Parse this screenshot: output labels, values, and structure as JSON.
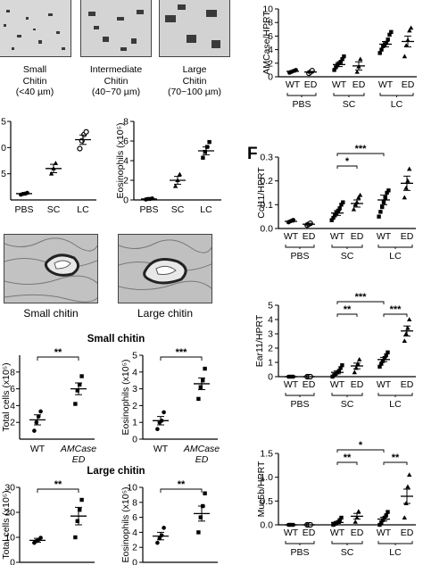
{
  "panel_letters": {
    "f": "F"
  },
  "chitin_sizes": [
    {
      "name": "Small",
      "word": "Chitin",
      "range": "(<40 µm)"
    },
    {
      "name": "Intermediate",
      "word": "Chitin",
      "range": "(40~70 µm)"
    },
    {
      "name": "Large",
      "word": "Chitin",
      "range": "(70~100 µm)"
    }
  ],
  "histology_labels": [
    "Small chitin",
    "Large chitin"
  ],
  "section_titles": {
    "small": "Small chitin",
    "large": "Large chitin"
  },
  "colors": {
    "ink": "#000000",
    "mean_line": "#000000",
    "tissue": "#707070",
    "frame": "#444444"
  },
  "chart_data": [
    {
      "id": "b1",
      "type": "scatter",
      "ylabel": "",
      "y_tick_labels": [
        "5",
        "0",
        "5"
      ],
      "categories": [
        "PBS",
        "SC",
        "LC"
      ],
      "groups": [
        {
          "mean": 1.2,
          "sem": 0.1,
          "points": [
            1.0,
            1.15,
            1.2,
            1.35
          ],
          "marker": "circle"
        },
        {
          "mean": 6.0,
          "sem": 0.8,
          "points": [
            5.0,
            6.0,
            7.0
          ],
          "marker": "triangle"
        },
        {
          "mean": 11.5,
          "sem": 0.9,
          "points": [
            9.8,
            11.3,
            12.5,
            13.0
          ],
          "marker": "circle-open"
        }
      ]
    },
    {
      "id": "b2",
      "type": "scatter",
      "ylabel": "Eosinophils (x10⁵)",
      "ylim": [
        0,
        8
      ],
      "yticks": [
        0,
        2,
        4,
        6,
        8
      ],
      "categories": [
        "PBS",
        "SC",
        "LC"
      ],
      "groups": [
        {
          "mean": 0.1,
          "sem": 0.03,
          "points": [
            0.05,
            0.1,
            0.1,
            0.15
          ],
          "marker": "circle"
        },
        {
          "mean": 2.0,
          "sem": 0.4,
          "points": [
            1.4,
            2.0,
            2.6
          ],
          "marker": "triangle"
        },
        {
          "mean": 5.0,
          "sem": 0.4,
          "points": [
            4.3,
            4.9,
            5.4,
            5.9
          ],
          "marker": "square"
        }
      ]
    },
    {
      "id": "c1",
      "type": "scatter",
      "ylabel": "Total cells (x10⁵)",
      "y_tick_labels": [
        "8",
        "6",
        "4",
        "2"
      ],
      "categories": [
        "WT",
        "AMCase ED"
      ],
      "significance": "**",
      "groups": [
        {
          "mean": 2.3,
          "sem": 0.6,
          "points": [
            1.0,
            2.0,
            2.7,
            3.3
          ],
          "marker": "circle"
        },
        {
          "mean": 6.0,
          "sem": 0.7,
          "points": [
            4.2,
            5.8,
            6.5,
            7.5
          ],
          "marker": "square"
        }
      ]
    },
    {
      "id": "c2",
      "type": "scatter",
      "ylabel": "Eosinophils (x10⁵)",
      "ylim": [
        0,
        5
      ],
      "yticks": [
        0,
        1,
        2,
        3,
        4,
        5
      ],
      "categories": [
        "WT",
        "AMCase ED"
      ],
      "significance": "***",
      "groups": [
        {
          "mean": 1.1,
          "sem": 0.25,
          "points": [
            0.6,
            1.0,
            1.1,
            1.6
          ],
          "marker": "circle"
        },
        {
          "mean": 3.3,
          "sem": 0.35,
          "points": [
            2.4,
            3.1,
            3.5,
            4.2
          ],
          "marker": "square"
        }
      ]
    },
    {
      "id": "d1",
      "type": "scatter",
      "ylabel": "Total cells (x10⁵)",
      "y_tick_labels": [
        "30",
        "20",
        "10",
        "0"
      ],
      "categories": [
        "WT",
        "AMCase ED"
      ],
      "significance": "**",
      "groups": [
        {
          "mean": 8.8,
          "sem": 0.8,
          "points": [
            7.8,
            8.5,
            9.0,
            9.8
          ],
          "marker": "circle"
        },
        {
          "mean": 18.5,
          "sem": 3.5,
          "points": [
            10.0,
            16.5,
            21.0,
            25.0
          ],
          "marker": "square"
        }
      ]
    },
    {
      "id": "d2",
      "type": "scatter",
      "ylabel": "Eosinophils (x10⁵)",
      "ylim": [
        0,
        10
      ],
      "yticks": [
        0,
        2,
        4,
        6,
        8,
        10
      ],
      "categories": [
        "WT",
        "AMCase ED"
      ],
      "significance": "**",
      "groups": [
        {
          "mean": 3.5,
          "sem": 0.5,
          "points": [
            2.6,
            3.2,
            3.6,
            4.6
          ],
          "marker": "circle"
        },
        {
          "mean": 6.5,
          "sem": 1.0,
          "points": [
            4.0,
            6.0,
            7.5,
            9.2
          ],
          "marker": "square"
        }
      ]
    },
    {
      "id": "e",
      "type": "scatter",
      "ylabel": "AMCase/HPRT",
      "ylim": [
        0,
        10
      ],
      "yticks": [
        0,
        2,
        4,
        6,
        8,
        10
      ],
      "categories": [
        "WT",
        "ED",
        "WT",
        "ED",
        "WT",
        "ED"
      ],
      "group_labels": [
        "PBS",
        "SC",
        "LC"
      ],
      "groups": [
        {
          "mean": 0.8,
          "sem": 0.1,
          "points": [
            0.6,
            0.7,
            0.8,
            0.9,
            1.0
          ],
          "marker": "circle"
        },
        {
          "mean": 0.7,
          "sem": 0.1,
          "points": [
            0.5,
            0.7,
            0.9
          ],
          "marker": "circle-open"
        },
        {
          "mean": 1.8,
          "sem": 0.3,
          "points": [
            1.0,
            1.4,
            1.7,
            2.0,
            2.2,
            2.6,
            3.0
          ],
          "marker": "square"
        },
        {
          "mean": 1.6,
          "sem": 0.6,
          "points": [
            0.7,
            1.5,
            2.6
          ],
          "marker": "triangle"
        },
        {
          "mean": 4.8,
          "sem": 0.4,
          "points": [
            3.5,
            4.0,
            4.5,
            4.8,
            5.0,
            5.5,
            6.2,
            6.6
          ],
          "marker": "square"
        },
        {
          "mean": 5.2,
          "sem": 0.8,
          "points": [
            3.0,
            4.6,
            5.4,
            6.8,
            7.2
          ],
          "marker": "triangle"
        }
      ]
    },
    {
      "id": "f1",
      "type": "scatter",
      "ylabel": "Ccl11/HPRT",
      "ylim": [
        0,
        0.3
      ],
      "yticks": [
        0,
        0.1,
        0.2,
        0.3
      ],
      "ytick_labels": [
        "0.0",
        "0.1",
        "0.2",
        "0.3"
      ],
      "categories": [
        "WT",
        "ED",
        "WT",
        "ED",
        "WT",
        "ED"
      ],
      "group_labels": [
        "PBS",
        "SC",
        "LC"
      ],
      "significance": [
        {
          "from": 2,
          "to": 3,
          "label": "*"
        },
        {
          "from": 2,
          "to": 4,
          "label": "***"
        }
      ],
      "groups": [
        {
          "mean": 0.03,
          "sem": 0.003,
          "points": [
            0.026,
            0.03,
            0.033,
            0.036
          ],
          "marker": "circle"
        },
        {
          "mean": 0.018,
          "sem": 0.004,
          "points": [
            0.014,
            0.018,
            0.022
          ],
          "marker": "circle-open"
        },
        {
          "mean": 0.065,
          "sem": 0.01,
          "points": [
            0.035,
            0.045,
            0.055,
            0.065,
            0.075,
            0.085,
            0.1,
            0.11
          ],
          "marker": "square"
        },
        {
          "mean": 0.105,
          "sem": 0.015,
          "points": [
            0.08,
            0.1,
            0.11,
            0.13,
            0.14
          ],
          "marker": "triangle"
        },
        {
          "mean": 0.12,
          "sem": 0.02,
          "points": [
            0.05,
            0.07,
            0.09,
            0.11,
            0.13,
            0.15,
            0.16
          ],
          "marker": "square"
        },
        {
          "mean": 0.19,
          "sem": 0.03,
          "points": [
            0.13,
            0.17,
            0.2,
            0.25
          ],
          "marker": "triangle"
        }
      ]
    },
    {
      "id": "f2",
      "type": "scatter",
      "ylabel": "Ear11/HPRT",
      "ylim": [
        0,
        5
      ],
      "yticks": [
        0,
        1,
        2,
        3,
        4,
        5
      ],
      "categories": [
        "WT",
        "ED",
        "WT",
        "ED",
        "WT",
        "ED"
      ],
      "group_labels": [
        "PBS",
        "SC",
        "LC"
      ],
      "significance": [
        {
          "from": 2,
          "to": 3,
          "label": "**"
        },
        {
          "from": 2,
          "to": 4,
          "label": "***"
        },
        {
          "from": 4,
          "to": 5,
          "label": "***"
        }
      ],
      "groups": [
        {
          "mean": 0.0,
          "sem": 0.0,
          "points": [
            0.0,
            0.0,
            0.0,
            0.0
          ],
          "marker": "circle"
        },
        {
          "mean": 0.0,
          "sem": 0.0,
          "points": [
            0.0,
            0.0,
            0.0
          ],
          "marker": "circle-open"
        },
        {
          "mean": 0.3,
          "sem": 0.1,
          "points": [
            0.0,
            0.1,
            0.2,
            0.3,
            0.4,
            0.6,
            0.8
          ],
          "marker": "square"
        },
        {
          "mean": 0.75,
          "sem": 0.2,
          "points": [
            0.3,
            0.6,
            0.9,
            1.2
          ],
          "marker": "triangle"
        },
        {
          "mean": 1.2,
          "sem": 0.15,
          "points": [
            0.7,
            0.9,
            1.1,
            1.3,
            1.5,
            1.7
          ],
          "marker": "square"
        },
        {
          "mean": 3.2,
          "sem": 0.35,
          "points": [
            2.5,
            3.0,
            3.4,
            4.0
          ],
          "marker": "triangle"
        }
      ]
    },
    {
      "id": "f3",
      "type": "scatter",
      "ylabel": "Muc5b/HPRT",
      "ylim": [
        0,
        1.5
      ],
      "yticks": [
        0,
        0.5,
        1.0,
        1.5
      ],
      "ytick_labels": [
        "0.0",
        "0.5",
        "1.0",
        "1.5"
      ],
      "categories": [
        "WT",
        "ED",
        "WT",
        "ED",
        "WT",
        "ED"
      ],
      "group_labels": [
        "PBS",
        "SC",
        "LC"
      ],
      "significance": [
        {
          "from": 2,
          "to": 3,
          "label": "**"
        },
        {
          "from": 2,
          "to": 4,
          "label": "*"
        },
        {
          "from": 4,
          "to": 5,
          "label": "**"
        }
      ],
      "groups": [
        {
          "mean": 0.0,
          "sem": 0.0,
          "points": [
            0.0,
            0.0,
            0.0,
            0.0
          ],
          "marker": "circle"
        },
        {
          "mean": 0.0,
          "sem": 0.0,
          "points": [
            0.0,
            0.0,
            0.0
          ],
          "marker": "circle-open"
        },
        {
          "mean": 0.05,
          "sem": 0.02,
          "points": [
            0.0,
            0.02,
            0.04,
            0.06,
            0.1,
            0.15
          ],
          "marker": "square"
        },
        {
          "mean": 0.18,
          "sem": 0.06,
          "points": [
            0.06,
            0.15,
            0.28
          ],
          "marker": "triangle"
        },
        {
          "mean": 0.12,
          "sem": 0.04,
          "points": [
            0.0,
            0.05,
            0.1,
            0.15,
            0.2,
            0.27
          ],
          "marker": "square"
        },
        {
          "mean": 0.6,
          "sem": 0.15,
          "points": [
            0.15,
            0.45,
            0.8,
            1.05
          ],
          "marker": "triangle"
        }
      ]
    }
  ]
}
